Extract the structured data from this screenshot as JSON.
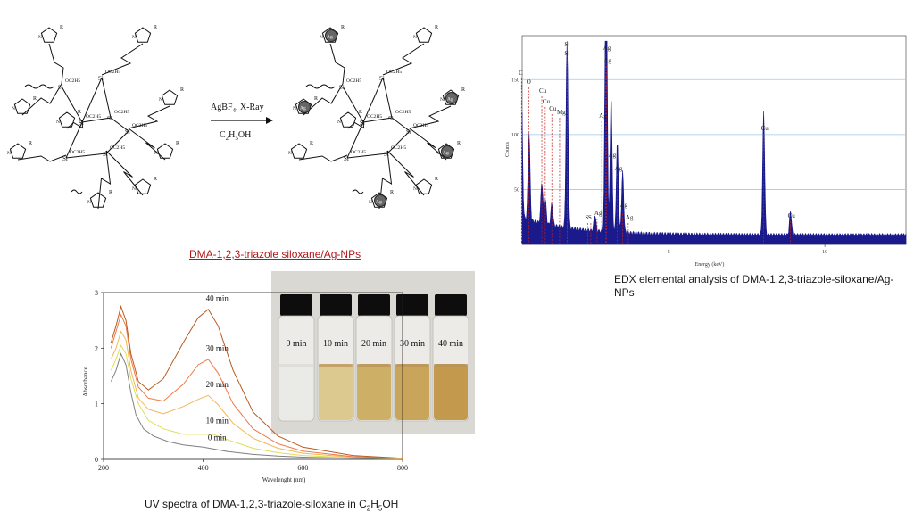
{
  "scheme": {
    "reagent_line1": "AgBF",
    "reagent_line1_sub": "4",
    "reagent_line1_tail": ", X-Ray",
    "solvent": "C",
    "solvent_sub1": "2",
    "solvent_mid": "H",
    "solvent_sub2": "5",
    "solvent_tail": "OH",
    "caption": "DMA-1,2,3-triazole siloxane/Ag-NPs",
    "ag_label": "Ag",
    "si_label": "Si",
    "ethoxy_label": "OC2H5",
    "r_label": "R",
    "n_label": "N"
  },
  "edx": {
    "caption_line1": "EDX elemental analysis of DMA-1,2,3-triazole-siloxane/Ag-",
    "caption_line2": "NPs",
    "x_label": "Energy (keV)",
    "y_label": "Counts",
    "y_ticks": [
      "150",
      "100",
      "50"
    ],
    "x_ticks": [
      "5",
      "10"
    ],
    "peak_labels": [
      "C",
      "O",
      "Cu",
      "Cu",
      "Cu",
      "Mg",
      "Si",
      "Si",
      "Ag",
      "Ag",
      "Ag",
      "Ag",
      "Ag",
      "Ag",
      "Ag",
      "S",
      "S",
      "Ag",
      "Cu",
      "Cu"
    ],
    "colors": {
      "fill": "#1a1a8c",
      "peaks": "#c41e1e",
      "grid": "#9ec9e6"
    }
  },
  "photo": {
    "vial_labels": [
      "0 min",
      "10 min",
      "20 min",
      "30 min",
      "40 min"
    ],
    "liquid_colors": [
      "#eaeae6",
      "#dcc98f",
      "#cdb066",
      "#c9a45b",
      "#c3994e"
    ]
  },
  "chart_data": {
    "type": "line",
    "title": "",
    "caption": "UV spectra of DMA-1,2,3-triazole-siloxane in C",
    "caption_sub1": "2",
    "caption_mid": "H",
    "caption_sub2": "5",
    "caption_tail": "OH",
    "xlabel": "Wavelenght (nm)",
    "ylabel": "Absorbance",
    "xlim": [
      200,
      800
    ],
    "ylim": [
      0,
      3
    ],
    "x_ticks": [
      200,
      400,
      600,
      800
    ],
    "y_ticks": [
      0,
      1,
      2,
      3
    ],
    "series": [
      {
        "name": "0 min",
        "color": "#808080",
        "x": [
          215,
          225,
          235,
          245,
          255,
          265,
          280,
          300,
          330,
          360,
          400,
          450,
          500,
          550,
          600,
          700,
          800
        ],
        "y": [
          1.4,
          1.6,
          1.9,
          1.7,
          1.2,
          0.8,
          0.55,
          0.42,
          0.32,
          0.26,
          0.22,
          0.14,
          0.09,
          0.06,
          0.04,
          0.02,
          0.01
        ]
      },
      {
        "name": "10 min",
        "color": "#e0dc59",
        "x": [
          215,
          225,
          235,
          245,
          255,
          270,
          290,
          320,
          360,
          400,
          420,
          450,
          500,
          550,
          600,
          700,
          800
        ],
        "y": [
          1.6,
          1.8,
          2.05,
          1.9,
          1.45,
          1.0,
          0.7,
          0.55,
          0.45,
          0.45,
          0.45,
          0.35,
          0.2,
          0.12,
          0.07,
          0.03,
          0.01
        ]
      },
      {
        "name": "20 min",
        "color": "#f3b657",
        "x": [
          215,
          225,
          235,
          245,
          255,
          270,
          290,
          320,
          360,
          390,
          410,
          430,
          460,
          500,
          550,
          600,
          700,
          800
        ],
        "y": [
          1.8,
          2.0,
          2.3,
          2.15,
          1.6,
          1.1,
          0.9,
          0.82,
          0.95,
          1.08,
          1.15,
          0.98,
          0.65,
          0.38,
          0.2,
          0.11,
          0.04,
          0.01
        ]
      },
      {
        "name": "30 min",
        "color": "#ee7a4a",
        "x": [
          215,
          225,
          235,
          245,
          255,
          270,
          290,
          320,
          360,
          390,
          410,
          430,
          460,
          500,
          550,
          600,
          700,
          800
        ],
        "y": [
          2.0,
          2.3,
          2.6,
          2.4,
          1.8,
          1.3,
          1.1,
          1.05,
          1.35,
          1.7,
          1.8,
          1.55,
          1.0,
          0.55,
          0.28,
          0.15,
          0.05,
          0.02
        ]
      },
      {
        "name": "40 min",
        "color": "#b85a1e",
        "x": [
          215,
          225,
          235,
          245,
          255,
          270,
          290,
          320,
          360,
          390,
          410,
          430,
          460,
          500,
          550,
          600,
          700,
          800
        ],
        "y": [
          2.1,
          2.4,
          2.75,
          2.5,
          1.9,
          1.4,
          1.25,
          1.45,
          2.1,
          2.55,
          2.7,
          2.4,
          1.6,
          0.85,
          0.42,
          0.22,
          0.07,
          0.02
        ]
      }
    ],
    "annotations": [
      "40 min",
      "30 min",
      "20 min",
      "10 min",
      "0 min"
    ]
  }
}
